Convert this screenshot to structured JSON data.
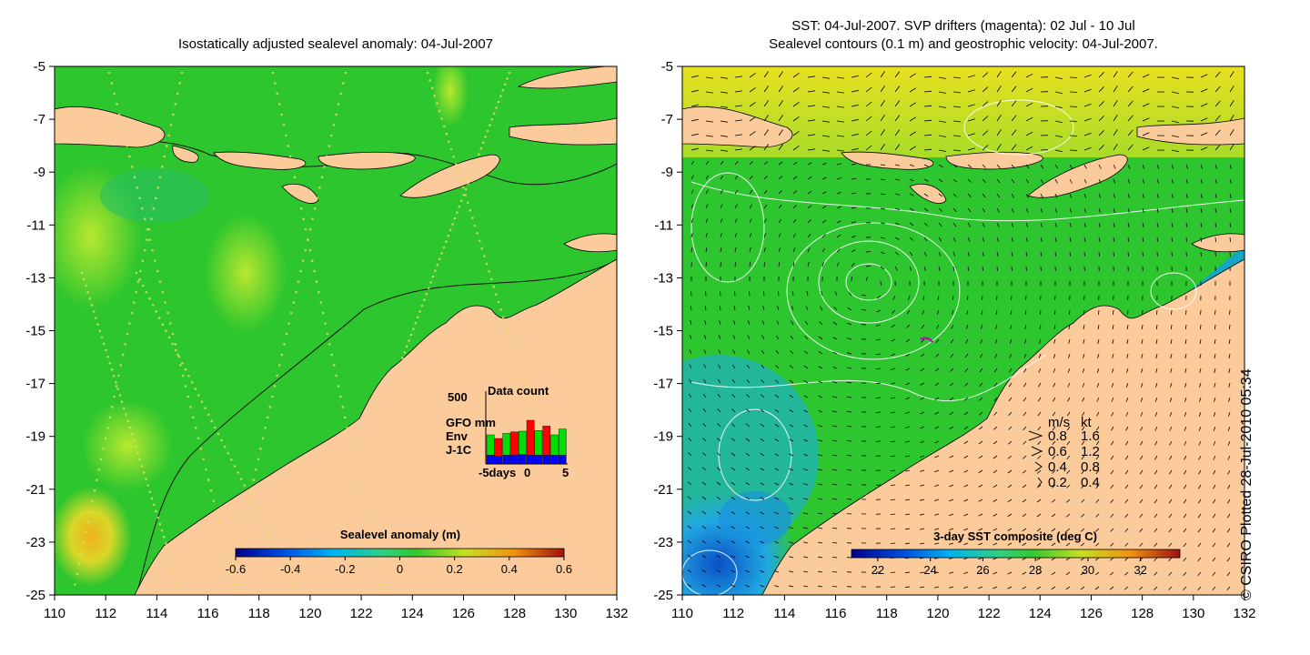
{
  "left_panel": {
    "title": "Isostatically adjusted sealevel anomaly: 04-Jul-2007",
    "colorbar": {
      "label": "Sealevel anomaly (m)",
      "min": -0.6,
      "max": 0.6,
      "ticks": [
        "-0.6",
        "-0.4",
        "-0.2",
        "0",
        "0.2",
        "0.4",
        "0.6"
      ]
    },
    "inset": {
      "title": "Data count",
      "ymax_label": "500",
      "legend": [
        {
          "name": "GFO mm",
          "color": "#ff0000"
        },
        {
          "name": "Env",
          "color": "#00e000"
        },
        {
          "name": "J-1C",
          "color": "#0000ff"
        }
      ],
      "xlabels": [
        "-5days",
        "0",
        "5"
      ],
      "bars": [
        {
          "day": -5,
          "jc": 60,
          "env": 140,
          "gfo": 0
        },
        {
          "day": -4,
          "jc": 55,
          "env": 0,
          "gfo": 120
        },
        {
          "day": -3,
          "jc": 60,
          "env": 150,
          "gfo": 0
        },
        {
          "day": -2,
          "jc": 60,
          "env": 0,
          "gfo": 160
        },
        {
          "day": -1,
          "jc": 65,
          "env": 160,
          "gfo": 0
        },
        {
          "day": 0,
          "jc": 60,
          "env": 0,
          "gfo": 240
        },
        {
          "day": 1,
          "jc": 60,
          "env": 170,
          "gfo": 0
        },
        {
          "day": 2,
          "jc": 60,
          "env": 0,
          "gfo": 200
        },
        {
          "day": 3,
          "jc": 60,
          "env": 140,
          "gfo": 0
        },
        {
          "day": 4,
          "jc": 60,
          "env": 180,
          "gfo": 0
        }
      ]
    }
  },
  "right_panel": {
    "title_line1": "SST: 04-Jul-2007. SVP drifters (magenta): 02 Jul - 10 Jul",
    "title_line2": "Sealevel contours (0.1 m) and geostrophic velocity: 04-Jul-2007.",
    "colorbar": {
      "label": "3-day SST composite (deg C)",
      "min": 21,
      "max": 33.5,
      "ticks": [
        "22",
        "24",
        "26",
        "28",
        "30",
        "32"
      ]
    },
    "velocity_legend": {
      "headers": [
        "m/s",
        "kt"
      ],
      "rows": [
        {
          "ms": "0.8",
          "kt": "1.6"
        },
        {
          "ms": "0.6",
          "kt": "1.2"
        },
        {
          "ms": "0.4",
          "kt": "0.8"
        },
        {
          "ms": "0.2",
          "kt": "0.4"
        }
      ]
    }
  },
  "axes": {
    "x_ticks": [
      "110",
      "112",
      "114",
      "116",
      "118",
      "120",
      "122",
      "124",
      "126",
      "128",
      "130",
      "132"
    ],
    "y_ticks": [
      "-5",
      "-7",
      "-9",
      "-11",
      "-13",
      "-15",
      "-17",
      "-19",
      "-21",
      "-23",
      "-25"
    ],
    "lon_range": [
      110,
      132
    ],
    "lat_range": [
      -25,
      -5
    ]
  },
  "credit": "© CSIRO Plotted 28-Jul-2010 05:34",
  "colors": {
    "land": "#fbcb9c",
    "ocean_green": "#2ec62e",
    "cold_blue": "#1a9fe0",
    "warm_yellow": "#d8e020"
  }
}
